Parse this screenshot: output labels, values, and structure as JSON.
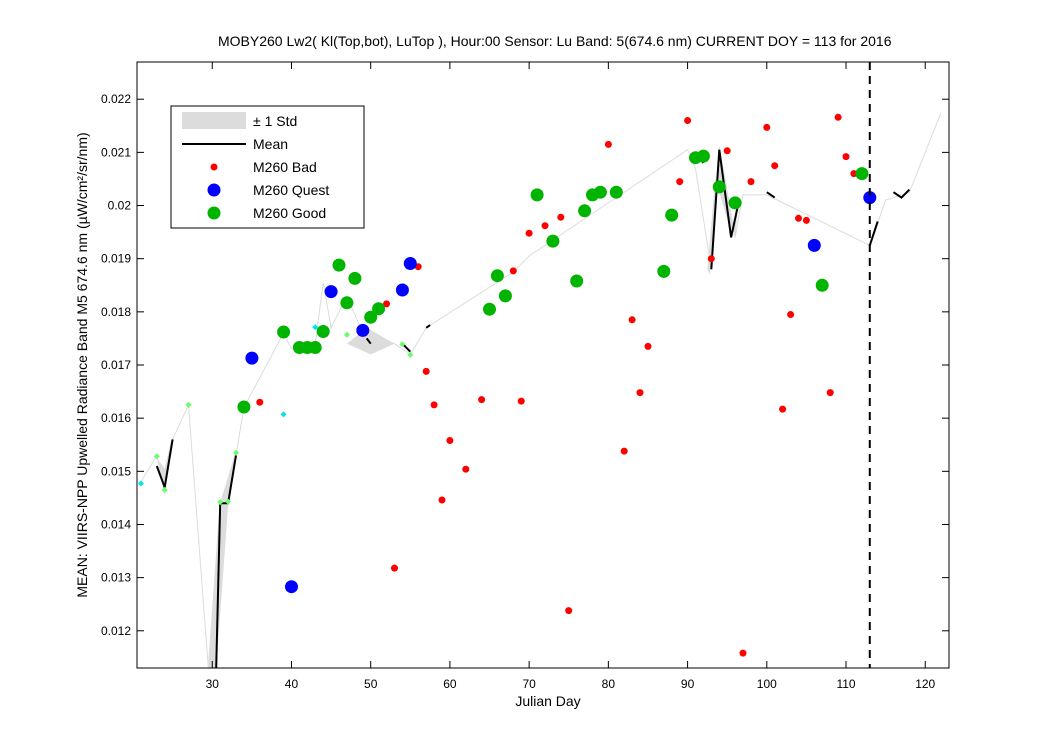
{
  "chart_data": {
    "type": "scatter",
    "title": "MOBY260   Lw2( Kl(Top,bot), LuTop ),   Hour:00 Sensor: Lu Band: 5(674.6 nm)   CURRENT DOY = 113 for 2016",
    "xlabel": "Julian Day",
    "ylabel": "MEAN: VIIRS-NPP Upwelled Radiance Band M5 674.6 nm (µW/cm²/sr/nm)",
    "xlim": [
      20.5,
      123
    ],
    "ylim": [
      0.0113,
      0.0227
    ],
    "x_ticks": [
      30,
      40,
      50,
      60,
      70,
      80,
      90,
      100,
      110,
      120
    ],
    "x_tick_labels": [
      "30",
      "40",
      "50",
      "60",
      "70",
      "80",
      "90",
      "100",
      "110",
      "120"
    ],
    "y_ticks": [
      0.012,
      0.013,
      0.014,
      0.015,
      0.016,
      0.017,
      0.018,
      0.019,
      0.02,
      0.021,
      0.022
    ],
    "y_tick_labels": [
      "0.012",
      "0.013",
      "0.014",
      "0.015",
      "0.016",
      "0.017",
      "0.018",
      "0.019",
      "0.02",
      "0.021",
      "0.022"
    ],
    "grid": false,
    "legend": {
      "placement": "top-left",
      "entries": [
        "± 1 Std",
        "Mean",
        "M260 Bad",
        "M260 Quest",
        "M260 Good"
      ]
    },
    "current_doy_line": 113,
    "colors": {
      "bad": "#ff0000",
      "quest": "#0000ff",
      "good": "#00b400",
      "light_good": "#66ff66",
      "cyan": "#00e5ee",
      "mean": "#000000",
      "std": "#dcdcdc"
    },
    "std_polygons": [
      [
        [
          24,
          0.01505
        ],
        [
          25,
          0.0157
        ],
        [
          24,
          0.01455
        ],
        [
          23,
          0.01525
        ]
      ],
      [
        [
          29.5,
          0.0113
        ],
        [
          31,
          0.0144
        ],
        [
          33,
          0.0154
        ],
        [
          32,
          0.01435
        ],
        [
          30.5,
          0.0113
        ]
      ],
      [
        [
          47,
          0.0174
        ],
        [
          49.5,
          0.0177
        ],
        [
          53,
          0.0174
        ],
        [
          50,
          0.0172
        ]
      ],
      [
        [
          92.5,
          0.0188
        ],
        [
          93.5,
          0.0205
        ],
        [
          95.5,
          0.0195
        ],
        [
          96.5,
          0.0202
        ],
        [
          96,
          0.0194
        ],
        [
          94,
          0.021
        ],
        [
          92.8,
          0.0187
        ]
      ]
    ],
    "std_boundary": [
      [
        21,
        0.0148
      ],
      [
        23,
        0.0153
      ],
      [
        24,
        0.01465
      ],
      [
        25,
        0.0156
      ],
      [
        27,
        0.01625
      ],
      [
        29.5,
        0.0113
      ],
      [
        31,
        0.0144
      ],
      [
        33,
        0.0153
      ],
      [
        34,
        0.0162
      ],
      [
        39,
        0.0176
      ],
      [
        40,
        0.0173
      ],
      [
        43,
        0.0174
      ],
      [
        44,
        0.01855
      ],
      [
        45,
        0.0177
      ],
      [
        47,
        0.0183
      ],
      [
        49,
        0.0176
      ],
      [
        53,
        0.0174
      ],
      [
        55,
        0.0172
      ],
      [
        57,
        0.0177
      ],
      [
        68,
        0.01875
      ],
      [
        70,
        0.01905
      ],
      [
        90,
        0.02105
      ],
      [
        91,
        0.0207
      ],
      [
        93,
        0.0188
      ],
      [
        94,
        0.0211
      ],
      [
        96,
        0.0194
      ],
      [
        97,
        0.0202
      ],
      [
        100,
        0.0202
      ],
      [
        113,
        0.01925
      ],
      [
        115,
        0.0201
      ],
      [
        118,
        0.02025
      ],
      [
        122,
        0.02175
      ]
    ],
    "mean_segments": [
      [
        [
          23,
          0.0151
        ],
        [
          24,
          0.0147
        ],
        [
          25,
          0.0156
        ]
      ],
      [
        [
          30.5,
          0.0113
        ],
        [
          31,
          0.0144
        ]
      ],
      [
        [
          31,
          0.0144
        ],
        [
          32,
          0.0144
        ],
        [
          33,
          0.0153
        ]
      ],
      [
        [
          49.5,
          0.0175
        ],
        [
          50,
          0.0174
        ]
      ],
      [
        [
          54,
          0.0174
        ],
        [
          55,
          0.01725
        ]
      ],
      [
        [
          57,
          0.0177
        ],
        [
          57.5,
          0.01775
        ]
      ],
      [
        [
          91.5,
          0.0209
        ],
        [
          92,
          0.0208
        ]
      ],
      [
        [
          93,
          0.0188
        ],
        [
          94,
          0.02105
        ],
        [
          95.5,
          0.0194
        ],
        [
          96.5,
          0.0201
        ]
      ],
      [
        [
          100,
          0.02025
        ],
        [
          101,
          0.02015
        ]
      ],
      [
        [
          113,
          0.01925
        ],
        [
          114,
          0.0197
        ]
      ],
      [
        [
          116,
          0.02025
        ],
        [
          117,
          0.02015
        ],
        [
          118,
          0.0203
        ]
      ]
    ],
    "series": [
      {
        "name": "M260 Bad",
        "marker": "small-dot",
        "x": [
          36,
          52,
          53,
          56,
          57,
          58,
          59,
          60,
          62,
          64,
          68,
          69,
          70,
          72,
          74,
          75,
          80,
          82,
          83,
          84,
          85,
          89,
          90,
          93,
          95,
          97,
          98,
          100,
          101,
          102,
          103,
          104,
          105,
          108,
          109,
          110,
          111
        ],
        "y": [
          0.0163,
          0.01815,
          0.01318,
          0.01885,
          0.01688,
          0.01625,
          0.01446,
          0.01558,
          0.01504,
          0.01635,
          0.01877,
          0.01632,
          0.01948,
          0.01962,
          0.01978,
          0.01238,
          0.02115,
          0.01538,
          0.01785,
          0.01648,
          0.01735,
          0.02045,
          0.0216,
          0.019,
          0.02103,
          0.01158,
          0.02045,
          0.02147,
          0.02075,
          0.01617,
          0.01795,
          0.01976,
          0.01972,
          0.01648,
          0.02166,
          0.02092,
          0.0206
        ]
      },
      {
        "name": "M260 Quest",
        "marker": "large-dot",
        "x": [
          35,
          40,
          45,
          49,
          54,
          55,
          106,
          113
        ],
        "y": [
          0.01713,
          0.01283,
          0.01838,
          0.01765,
          0.01841,
          0.01891,
          0.01925,
          0.02015
        ]
      },
      {
        "name": "M260 Good",
        "marker": "large-dot",
        "x": [
          34,
          39,
          41,
          42,
          43,
          44,
          46,
          47,
          48,
          50,
          51,
          65,
          66,
          67,
          71,
          73,
          76,
          77,
          78,
          79,
          81,
          87,
          88,
          91,
          92,
          94,
          96,
          107,
          112
        ],
        "y": [
          0.01621,
          0.01762,
          0.01733,
          0.01733,
          0.01733,
          0.01763,
          0.01888,
          0.01817,
          0.01863,
          0.0179,
          0.01806,
          0.01805,
          0.01868,
          0.0183,
          0.0202,
          0.01933,
          0.01858,
          0.0199,
          0.0202,
          0.02025,
          0.02025,
          0.01876,
          0.01982,
          0.0209,
          0.02093,
          0.02035,
          0.02005,
          0.0185,
          0.0206
        ]
      },
      {
        "marker": "diamond",
        "color": "light_good",
        "x": [
          23,
          24,
          27,
          31,
          32,
          33,
          47,
          54,
          55
        ],
        "y": [
          0.01528,
          0.01465,
          0.01625,
          0.01442,
          0.01443,
          0.01535,
          0.01757,
          0.01739,
          0.01719
        ]
      },
      {
        "marker": "diamond",
        "color": "cyan",
        "x": [
          21,
          39,
          43
        ],
        "y": [
          0.01477,
          0.01607,
          0.01771
        ]
      }
    ]
  }
}
